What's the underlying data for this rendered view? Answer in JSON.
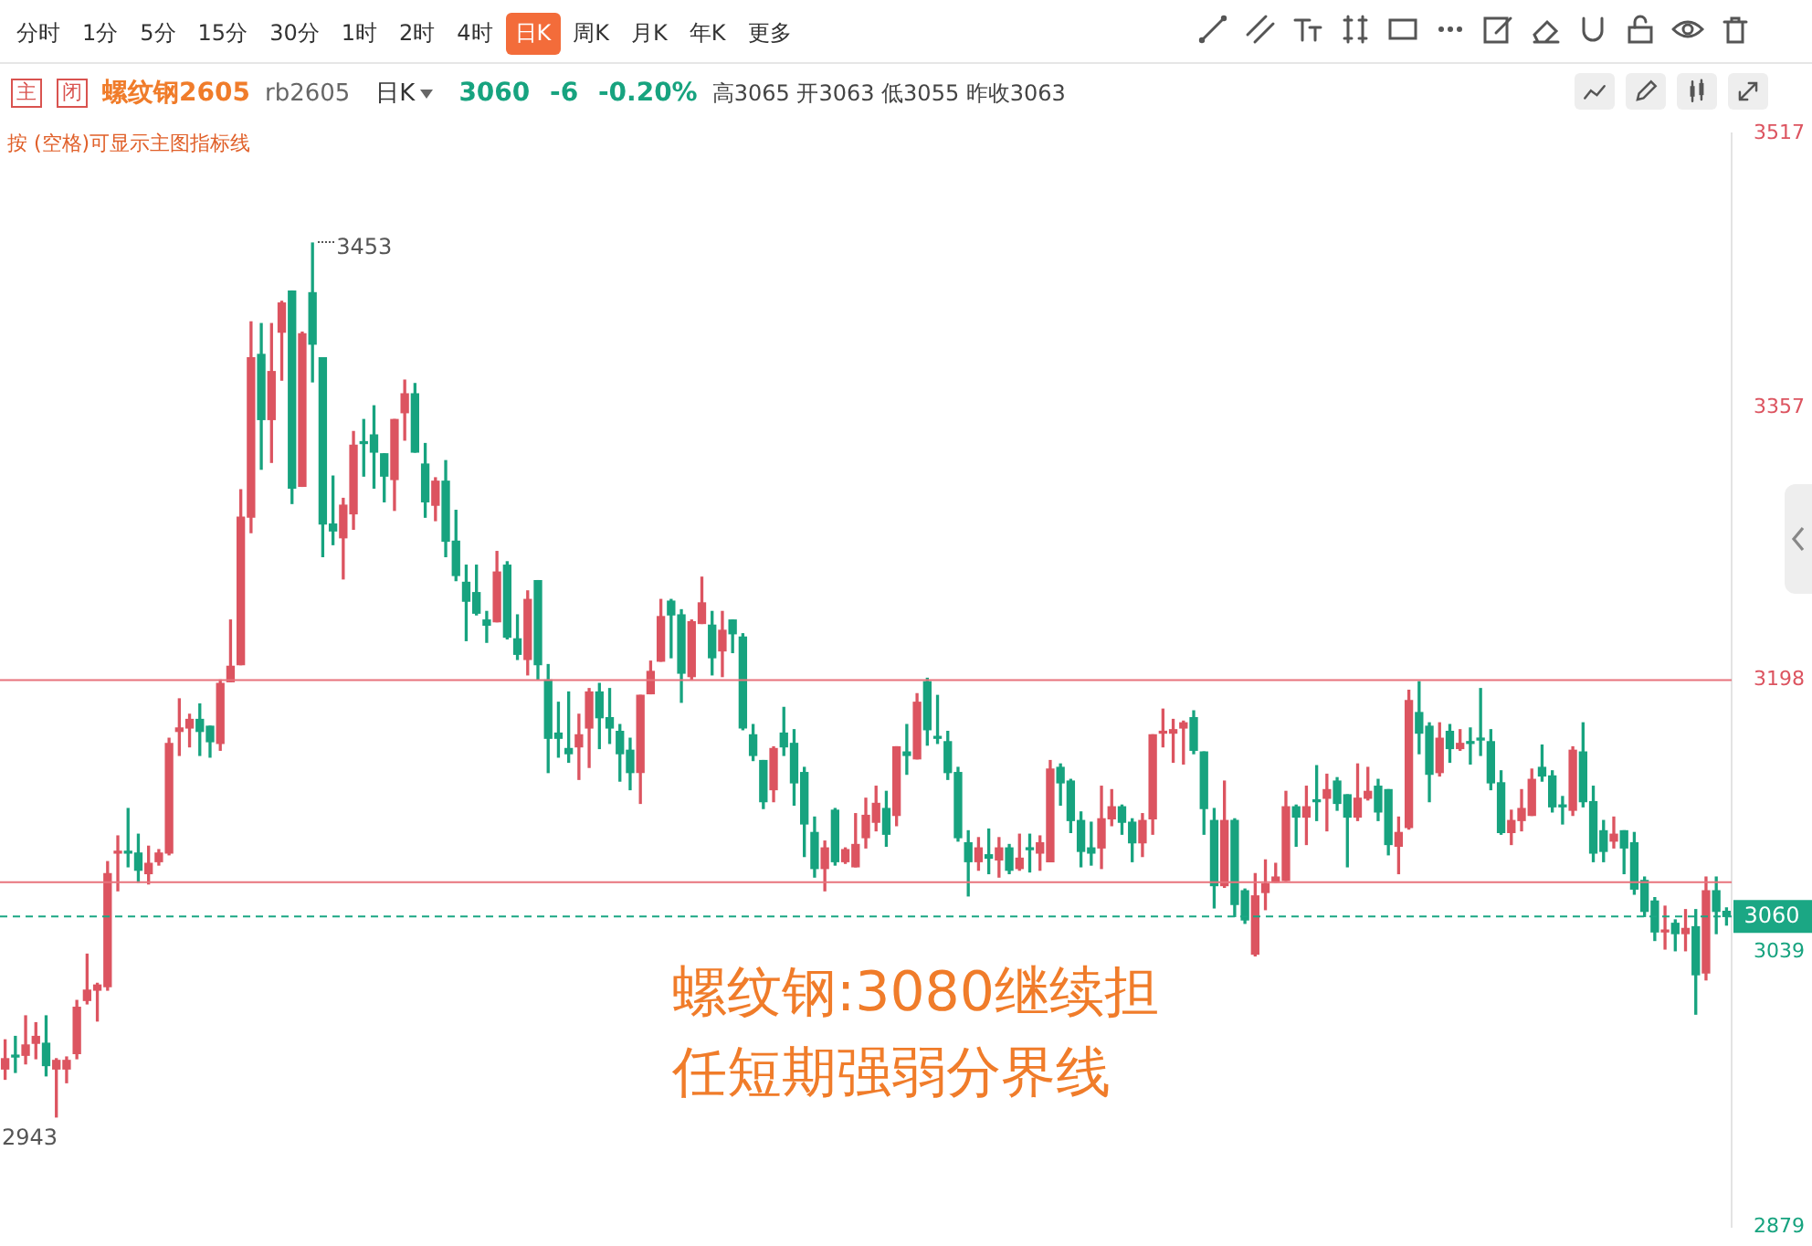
{
  "chart_data": {
    "type": "candlestick",
    "title": "螺纹钢2605",
    "subtitle": "rb2605",
    "categories": [
      null,
      null,
      null,
      null,
      null,
      null,
      null,
      null,
      null,
      null,
      null,
      null,
      null,
      null,
      null,
      null,
      null,
      null,
      null,
      null,
      null,
      null,
      null,
      null,
      null,
      null,
      null,
      null,
      null,
      null,
      null,
      null,
      null,
      null,
      null,
      null,
      null,
      null,
      null,
      null,
      null,
      null,
      null,
      null,
      null,
      null,
      null,
      null,
      null,
      null,
      null,
      null,
      null,
      null,
      null,
      null,
      null,
      null,
      null,
      null,
      null,
      null,
      null,
      null,
      null,
      null,
      null,
      null,
      null,
      null,
      null,
      null,
      null,
      null,
      null,
      null,
      null,
      null,
      null,
      null,
      null,
      null,
      null,
      null,
      null,
      null,
      null,
      null,
      null,
      null,
      null,
      null,
      null,
      null,
      null,
      null,
      null,
      null,
      null,
      null,
      null,
      null,
      null,
      null,
      null,
      null,
      null,
      null,
      null,
      null,
      null,
      null,
      null,
      null,
      null,
      null,
      null,
      null,
      null,
      null,
      null,
      null,
      null,
      null,
      null,
      null,
      null,
      null,
      null,
      null,
      null,
      null,
      null,
      null,
      null,
      null,
      null,
      null,
      null,
      null,
      null,
      null,
      null,
      null,
      null,
      null,
      null,
      null,
      null,
      null,
      null,
      null,
      null,
      null,
      null,
      null,
      null,
      null,
      null,
      null,
      null,
      null,
      null,
      null,
      null,
      null,
      null,
      null,
      null
    ],
    "ohlc": [
      [
        2971,
        2988,
        2965,
        2977
      ],
      [
        2979,
        2990,
        2969,
        2978
      ],
      [
        2979,
        3002,
        2974,
        2985
      ],
      [
        2986,
        2998,
        2977,
        2990
      ],
      [
        2986,
        3002,
        2967,
        2973
      ],
      [
        2971,
        2977,
        2943,
        2976
      ],
      [
        2971,
        2978,
        2963,
        2976
      ],
      [
        2980,
        3011,
        2977,
        3007
      ],
      [
        3011,
        3038,
        3009,
        3017
      ],
      [
        3017,
        3021,
        2999,
        3020
      ],
      [
        3019,
        3092,
        3017,
        3085
      ],
      [
        3097,
        3107,
        3075,
        3098
      ],
      [
        3098,
        3123,
        3089,
        3097
      ],
      [
        3097,
        3108,
        3080,
        3087
      ],
      [
        3085,
        3101,
        3079,
        3091
      ],
      [
        3092,
        3099,
        3090,
        3097
      ],
      [
        3097,
        3164,
        3096,
        3161
      ],
      [
        3168,
        3187,
        3154,
        3170
      ],
      [
        3170,
        3178,
        3159,
        3175
      ],
      [
        3175,
        3184,
        3154,
        3168
      ],
      [
        3171,
        3171,
        3153,
        3162
      ],
      [
        3161,
        3198,
        3157,
        3196
      ],
      [
        3197,
        3233,
        3197,
        3206
      ],
      [
        3207,
        3309,
        3207,
        3293
      ],
      [
        3293,
        3407,
        3284,
        3386
      ],
      [
        3388,
        3406,
        3321,
        3350
      ],
      [
        3350,
        3406,
        3325,
        3378
      ],
      [
        3401,
        3419,
        3373,
        3418
      ],
      [
        3425,
        3425,
        3301,
        3310
      ],
      [
        3311,
        3401,
        3311,
        3400
      ],
      [
        3424,
        3453,
        3372,
        3394
      ],
      [
        3386,
        3386,
        3270,
        3289
      ],
      [
        3289,
        3317,
        3277,
        3285
      ],
      [
        3281,
        3304,
        3257,
        3300
      ],
      [
        3295,
        3343,
        3286,
        3335
      ],
      [
        3337,
        3350,
        3317,
        3336
      ],
      [
        3341,
        3358,
        3310,
        3331
      ],
      [
        3330,
        3330,
        3302,
        3317
      ],
      [
        3315,
        3350,
        3297,
        3350
      ],
      [
        3354,
        3373,
        3338,
        3365
      ],
      [
        3365,
        3371,
        3331,
        3331
      ],
      [
        3324,
        3336,
        3293,
        3302
      ],
      [
        3300,
        3316,
        3291,
        3314
      ],
      [
        3314,
        3326,
        3270,
        3279
      ],
      [
        3279,
        3297,
        3256,
        3259
      ],
      [
        3255,
        3265,
        3221,
        3244
      ],
      [
        3249,
        3265,
        3236,
        3237
      ],
      [
        3233,
        3238,
        3220,
        3230
      ],
      [
        3232,
        3273,
        3232,
        3261
      ],
      [
        3265,
        3267,
        3222,
        3223
      ],
      [
        3222,
        3236,
        3210,
        3213
      ],
      [
        3210,
        3250,
        3201,
        3245
      ],
      [
        3256,
        3256,
        3198,
        3207
      ],
      [
        3198,
        3207,
        3144,
        3164
      ],
      [
        3167,
        3185,
        3153,
        3164
      ],
      [
        3158,
        3191,
        3150,
        3155
      ],
      [
        3159,
        3178,
        3140,
        3166
      ],
      [
        3170,
        3193,
        3147,
        3191
      ],
      [
        3191,
        3196,
        3158,
        3176
      ],
      [
        3176,
        3193,
        3161,
        3170
      ],
      [
        3168,
        3172,
        3139,
        3155
      ],
      [
        3157,
        3164,
        3134,
        3144
      ],
      [
        3144,
        3189,
        3126,
        3189
      ],
      [
        3190,
        3209,
        3190,
        3203
      ],
      [
        3209,
        3245,
        3209,
        3235
      ],
      [
        3244,
        3245,
        3211,
        3236
      ],
      [
        3236,
        3239,
        3185,
        3202
      ],
      [
        3200,
        3233,
        3198,
        3232
      ],
      [
        3231,
        3258,
        3231,
        3243
      ],
      [
        3230,
        3238,
        3201,
        3211
      ],
      [
        3215,
        3238,
        3200,
        3227
      ],
      [
        3233,
        3233,
        3214,
        3225
      ],
      [
        3223,
        3225,
        3169,
        3170
      ],
      [
        3166,
        3172,
        3151,
        3154
      ],
      [
        3151,
        3151,
        3123,
        3127
      ],
      [
        3134,
        3159,
        3127,
        3158
      ],
      [
        3167,
        3182,
        3154,
        3159
      ],
      [
        3161,
        3169,
        3125,
        3138
      ],
      [
        3144,
        3147,
        3095,
        3114
      ],
      [
        3109,
        3118,
        3083,
        3088
      ],
      [
        3088,
        3104,
        3075,
        3100
      ],
      [
        3122,
        3123,
        3090,
        3092
      ],
      [
        3092,
        3100,
        3091,
        3099
      ],
      [
        3089,
        3120,
        3089,
        3102
      ],
      [
        3106,
        3129,
        3100,
        3119
      ],
      [
        3115,
        3136,
        3110,
        3126
      ],
      [
        3123,
        3133,
        3101,
        3108
      ],
      [
        3119,
        3159,
        3113,
        3159
      ],
      [
        3156,
        3172,
        3143,
        3154
      ],
      [
        3152,
        3190,
        3152,
        3185
      ],
      [
        3197,
        3199,
        3160,
        3169
      ],
      [
        3165,
        3189,
        3161,
        3164
      ],
      [
        3162,
        3168,
        3140,
        3144
      ],
      [
        3144,
        3147,
        3104,
        3106
      ],
      [
        3103,
        3110,
        3072,
        3092
      ],
      [
        3092,
        3106,
        3087,
        3100
      ],
      [
        3096,
        3111,
        3085,
        3094
      ],
      [
        3093,
        3106,
        3083,
        3100
      ],
      [
        3100,
        3102,
        3085,
        3087
      ],
      [
        3088,
        3108,
        3087,
        3094
      ],
      [
        3100,
        3108,
        3086,
        3099
      ],
      [
        3097,
        3107,
        3087,
        3103
      ],
      [
        3092,
        3151,
        3092,
        3146
      ],
      [
        3147,
        3149,
        3125,
        3138
      ],
      [
        3139,
        3140,
        3109,
        3116
      ],
      [
        3116,
        3121,
        3089,
        3098
      ],
      [
        3100,
        3115,
        3090,
        3097
      ],
      [
        3100,
        3136,
        3088,
        3117
      ],
      [
        3117,
        3134,
        3113,
        3124
      ],
      [
        3124,
        3125,
        3108,
        3115
      ],
      [
        3115,
        3117,
        3092,
        3103
      ],
      [
        3103,
        3120,
        3095,
        3116
      ],
      [
        3117,
        3166,
        3108,
        3166
      ],
      [
        3167,
        3181,
        3159,
        3168
      ],
      [
        3167,
        3175,
        3150,
        3169
      ],
      [
        3170,
        3174,
        3149,
        3173
      ],
      [
        3176,
        3180,
        3155,
        3157
      ],
      [
        3156,
        3156,
        3108,
        3123
      ],
      [
        3116,
        3123,
        3065,
        3078
      ],
      [
        3078,
        3139,
        3077,
        3116
      ],
      [
        3116,
        3117,
        3060,
        3067
      ],
      [
        3075,
        3076,
        3056,
        3058
      ],
      [
        3038,
        3085,
        3037,
        3072
      ],
      [
        3074,
        3093,
        3064,
        3079
      ],
      [
        3080,
        3091,
        3080,
        3083
      ],
      [
        3081,
        3133,
        3081,
        3124
      ],
      [
        3124,
        3125,
        3101,
        3118
      ],
      [
        3118,
        3136,
        3102,
        3124
      ],
      [
        3128,
        3148,
        3116,
        3127
      ],
      [
        3129,
        3143,
        3110,
        3134
      ],
      [
        3139,
        3141,
        3122,
        3126
      ],
      [
        3131,
        3131,
        3089,
        3118
      ],
      [
        3118,
        3149,
        3116,
        3129
      ],
      [
        3129,
        3147,
        3128,
        3133
      ],
      [
        3136,
        3140,
        3116,
        3121
      ],
      [
        3134,
        3134,
        3096,
        3102
      ],
      [
        3101,
        3118,
        3085,
        3109
      ],
      [
        3112,
        3192,
        3111,
        3186
      ],
      [
        3179,
        3197,
        3155,
        3167
      ],
      [
        3171,
        3173,
        3127,
        3143
      ],
      [
        3144,
        3173,
        3142,
        3164
      ],
      [
        3168,
        3172,
        3150,
        3158
      ],
      [
        3158,
        3169,
        3157,
        3161
      ],
      [
        3162,
        3170,
        3149,
        3161
      ],
      [
        3164,
        3193,
        3154,
        3163
      ],
      [
        3162,
        3169,
        3134,
        3138
      ],
      [
        3138,
        3145,
        3108,
        3109
      ],
      [
        3109,
        3122,
        3102,
        3116
      ],
      [
        3116,
        3134,
        3110,
        3123
      ],
      [
        3119,
        3146,
        3119,
        3140
      ],
      [
        3147,
        3160,
        3139,
        3142
      ],
      [
        3142,
        3145,
        3121,
        3124
      ],
      [
        3125,
        3130,
        3114,
        3124
      ],
      [
        3122,
        3159,
        3119,
        3157
      ],
      [
        3156,
        3173,
        3124,
        3127
      ],
      [
        3127,
        3136,
        3092,
        3097
      ],
      [
        3110,
        3116,
        3092,
        3098
      ],
      [
        3104,
        3118,
        3100,
        3108
      ],
      [
        3110,
        3110,
        3085,
        3100
      ],
      [
        3103,
        3109,
        3073,
        3076
      ],
      [
        3081,
        3083,
        3060,
        3063
      ],
      [
        3069,
        3071,
        3046,
        3051
      ],
      [
        3051,
        3066,
        3041,
        3052
      ],
      [
        3056,
        3058,
        3040,
        3050
      ],
      [
        3050,
        3064,
        3040,
        3053
      ],
      [
        3054,
        3064,
        3003,
        3026
      ],
      [
        3027,
        3083,
        3023,
        3075
      ],
      [
        3075,
        3083,
        3050,
        3063
      ],
      [
        3063,
        3065,
        3055,
        3060
      ]
    ],
    "ylim": [
      2879,
      3517
    ],
    "yticks": [
      2879,
      3039,
      3198,
      3357,
      3517
    ],
    "grid": false,
    "legend": false,
    "tick_labels": "y",
    "ref_lines": [
      {
        "axis": "y",
        "value": 3198,
        "color": "#e8737c"
      },
      {
        "axis": "y",
        "value": 3080,
        "color": "#e8737c"
      },
      {
        "axis": "y",
        "value": 3060,
        "label": "3060",
        "color": "#1ba784",
        "line_style": "dashed"
      }
    ],
    "annotations": [
      "主",
      "闭",
      "日K",
      "3060 -6 -0.20%",
      "高3065 开3063 低3055 昨收3063",
      "按 (空格)可显示主图指标线",
      "螺纹钢:3080继续担任短期强弱分界线",
      "3453",
      "2943",
      "分时",
      "1分",
      "5分",
      "15分",
      "30分",
      "1时",
      "2时",
      "4时",
      "日K",
      "周K",
      "月K",
      "年K",
      "更多"
    ]
  }
}
